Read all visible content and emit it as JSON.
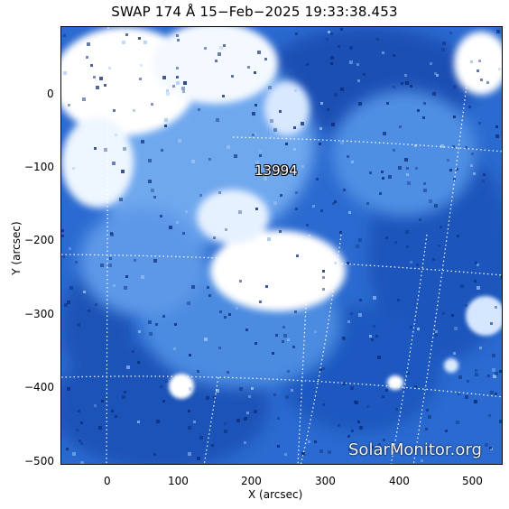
{
  "title": "SWAP 174 Å 15−Feb−2025 19:33:38.453",
  "x_axis": {
    "label": "X (arcsec)",
    "ticks": [
      "0",
      "100",
      "200",
      "300",
      "400",
      "500"
    ]
  },
  "y_axis": {
    "label": "Y (arcsec)",
    "ticks": [
      "0",
      "−100",
      "−200",
      "−300",
      "−400",
      "−500"
    ]
  },
  "region_label": "13994",
  "watermark": "SolarMonitor.org",
  "colors": {
    "background": "#2a68cc",
    "bright": "#ffffff",
    "dark": "#0a2b78"
  }
}
